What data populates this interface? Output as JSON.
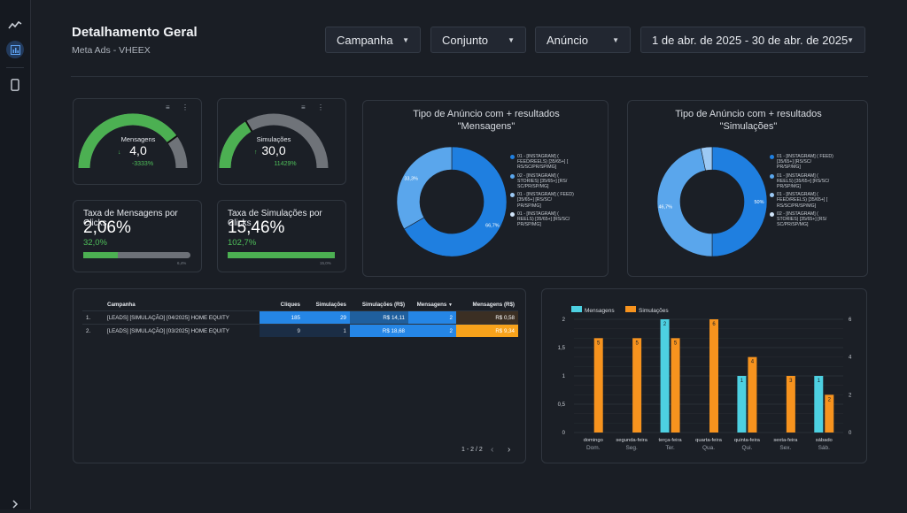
{
  "header": {
    "title": "Detalhamento Geral",
    "subtitle": "Meta Ads - VHEEX"
  },
  "filters": [
    {
      "label": "Campanha"
    },
    {
      "label": "Conjunto"
    },
    {
      "label": "Anúncio"
    },
    {
      "label": "1 de abr. de 2025 - 30 de abr. de 2025"
    }
  ],
  "sidebar": {
    "icons": [
      "trend-icon",
      "report-icon",
      "mobile-icon"
    ],
    "expand_icon": "chevron-right-icon"
  },
  "gauges": [
    {
      "label": "Mensagens",
      "value": "4,0",
      "delta": "-3333%",
      "fraction": 0.8
    },
    {
      "label": "Simulações",
      "value": "30,0",
      "delta": "11429%",
      "fraction": 0.33
    }
  ],
  "kpis": [
    {
      "title": "Taxa de Mensagens por Clicks",
      "value": "2,06%",
      "pct": "32,0%",
      "target": "6,4%",
      "progress": 0.32
    },
    {
      "title": "Taxa de Simulações por Clicks",
      "value": "15,46%",
      "pct": "102,7%",
      "target": "15,0%",
      "progress": 1.0
    }
  ],
  "donut_mensagens": {
    "title_line1": "Tipo de Anúncio  com + resultados",
    "title_line2": "\"Mensagens\"",
    "slices": [
      {
        "label_pct": "66,7%",
        "value": 66.7,
        "color": "#1f7fe0"
      },
      {
        "label_pct": "33,3%",
        "value": 33.3,
        "color": "#5aa6ec"
      }
    ],
    "legend": [
      {
        "text": "01 - [INSTAGRAM] ( FEED/REELS) [35/65+] [ RS/SC/PR/SP/MG]",
        "color": "#1f7fe0"
      },
      {
        "text": "02 - [INSTAGRAM] ( STORIES) [35/65+] [RS/ SC/PR/SP/MG]",
        "color": "#5aa6ec"
      },
      {
        "text": "01 - [INSTAGRAM] ( FEED) [35/65+] [RS/SC/ PR/SP/MG]",
        "color": "#9cc9f4"
      },
      {
        "text": "01 - [INSTAGRAM] ( REELS) [35/65+] [RS/SC/ PR/SP/MG]",
        "color": "#d3e6fa"
      }
    ]
  },
  "donut_simulacoes": {
    "title_line1": "Tipo de Anúncio  com + resultados",
    "title_line2": "\"Simulações\"",
    "slices": [
      {
        "label_pct": "50%",
        "value": 50,
        "color": "#1f7fe0"
      },
      {
        "label_pct": "46,7%",
        "value": 46.7,
        "color": "#5aa6ec"
      },
      {
        "label_pct": "",
        "value": 3.3,
        "color": "#9cc9f4"
      }
    ],
    "legend": [
      {
        "text": "01 - [INSTAGRAM] ( FEED) [35/65+] [RS/SC/ PR/SP/MG]",
        "color": "#1f7fe0"
      },
      {
        "text": "01 - [INSTAGRAM] ( REELS) [35/65+] [RS/SC/ PR/SP/MG]",
        "color": "#5aa6ec"
      },
      {
        "text": "01 - [INSTAGRAM] ( FEED/REELS) [35/65+] [ RS/SC/PR/SP/MG]",
        "color": "#9cc9f4"
      },
      {
        "text": "02 - [INSTAGRAM] ( STORIES) [35/65+] [RS/ SC/PR/SP/MG]",
        "color": "#d3e6fa"
      }
    ]
  },
  "table": {
    "columns": [
      "",
      "Campanha",
      "Cliques",
      "Simulações",
      "Simulações (R$)",
      "Mensagens",
      "Mensagens (R$)"
    ],
    "sort_icon": "sort-desc-icon",
    "rows": [
      [
        "1.",
        "[LEADS] [SIMULAÇÃO] [04/2025] HOME EQUITY",
        "185",
        "29",
        "R$ 14,11",
        "2",
        "R$ 0,58"
      ],
      [
        "2.",
        "[LEADS] [SIMULAÇÃO] [03/2025] HOME EQUITY",
        "9",
        "1",
        "R$ 18,68",
        "2",
        "R$ 9,34"
      ]
    ],
    "pagination": "1 - 2 / 2"
  },
  "chart_data": {
    "type": "bar",
    "categories": [
      "domingo",
      "segunda-feira",
      "terça-feira",
      "quarta-feira",
      "quinta-feira",
      "sexta-feira",
      "sábado"
    ],
    "categories_sub": [
      "Dom.",
      "Seg.",
      "Ter.",
      "Qua.",
      "Qui.",
      "Sex.",
      "Sáb."
    ],
    "series": [
      {
        "name": "Mensagens",
        "axis": "left",
        "color": "#4dd0e1",
        "values": [
          0,
          0,
          2,
          0,
          1,
          0,
          1
        ]
      },
      {
        "name": "Simulações",
        "axis": "right",
        "color": "#f7931e",
        "values": [
          5,
          5,
          5,
          6,
          4,
          3,
          2
        ]
      }
    ],
    "ylim_left": [
      0,
      2
    ],
    "yticks_left": [
      "0",
      "0,5",
      "1",
      "1,5",
      "2"
    ],
    "ylim_right": [
      0,
      6
    ],
    "yticks_right": [
      "0",
      "2",
      "4",
      "6"
    ],
    "legend_position": "top-left",
    "grid": true
  }
}
